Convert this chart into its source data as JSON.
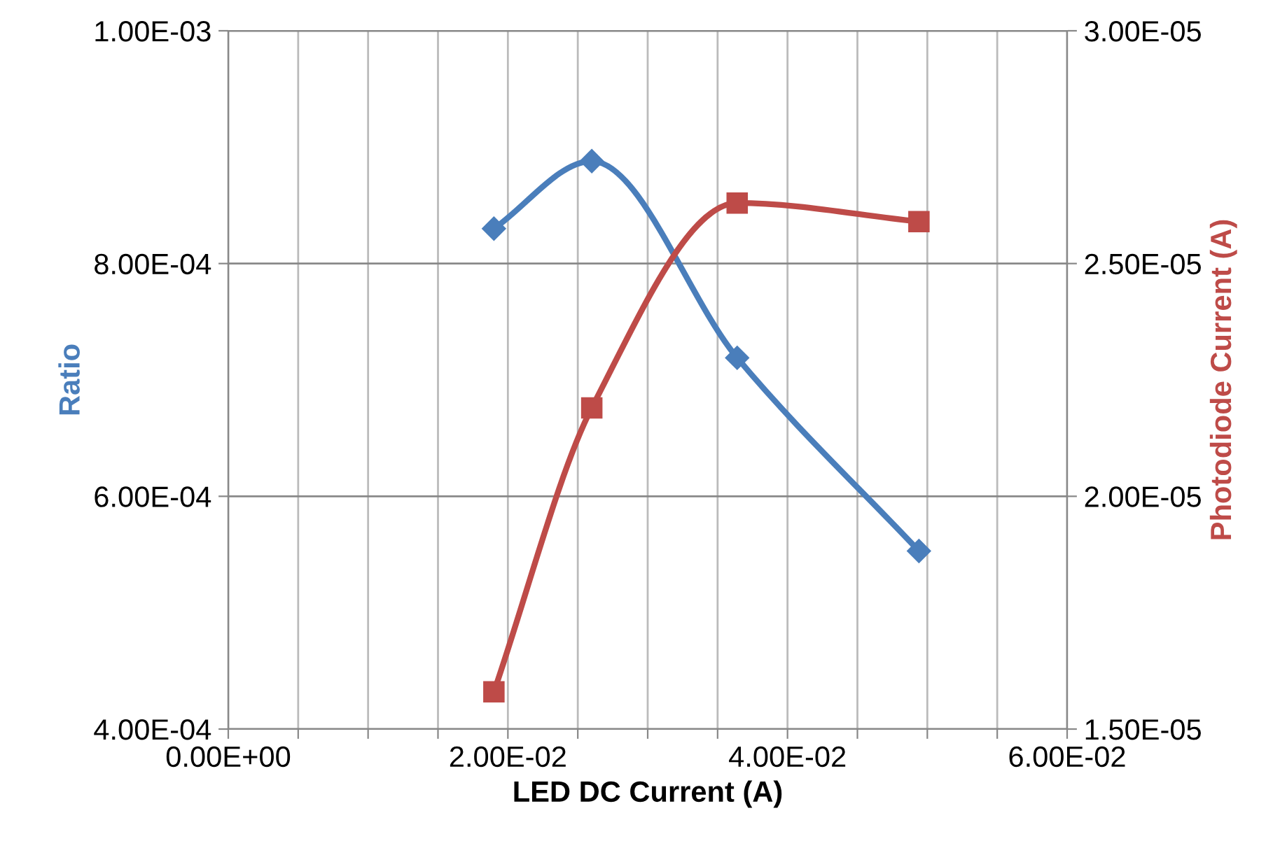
{
  "chart_data": {
    "type": "line",
    "xlabel": "LED DC Current (A)",
    "ylabel": "Ratio",
    "y2label": "Photodiode Current (A)",
    "series": [
      {
        "color": "#4a7ebb",
        "marker": "diamond",
        "x": [
          0.019,
          0.026,
          0.0364,
          0.0494
        ],
        "values": [
          0.00083,
          0.000888,
          0.000719,
          0.000553
        ]
      },
      {
        "color": "#be4b48",
        "marker": "square",
        "axis": "y2",
        "x": [
          0.019,
          0.026,
          0.0364,
          0.0494
        ],
        "values": [
          1.58e-05,
          2.19e-05,
          2.63e-05,
          2.59e-05
        ]
      }
    ],
    "xlim": [
      0,
      0.06
    ],
    "xticks": [
      {
        "value": 0,
        "label": "0.00E+00"
      },
      {
        "value": 0.005,
        "label": null
      },
      {
        "value": 0.01,
        "label": null
      },
      {
        "value": 0.015,
        "label": null
      },
      {
        "value": 0.02,
        "label": "2.00E-02"
      },
      {
        "value": 0.025,
        "label": null
      },
      {
        "value": 0.03,
        "label": null
      },
      {
        "value": 0.035,
        "label": null
      },
      {
        "value": 0.04,
        "label": "4.00E-02"
      },
      {
        "value": 0.045,
        "label": null
      },
      {
        "value": 0.05,
        "label": null
      },
      {
        "value": 0.055,
        "label": null
      },
      {
        "value": 0.06,
        "label": "6.00E-02"
      }
    ],
    "ylim": [
      0.0004,
      0.001
    ],
    "yticks": [
      {
        "value": 0.0004,
        "label": "4.00E-04"
      },
      {
        "value": 0.0006,
        "label": "6.00E-04"
      },
      {
        "value": 0.0008,
        "label": "8.00E-04"
      },
      {
        "value": 0.001,
        "label": "1.00E-03"
      }
    ],
    "y2lim": [
      1.5e-05,
      3e-05
    ],
    "y2ticks": [
      {
        "value": 1.5e-05,
        "label": "1.50E-05"
      },
      {
        "value": 2e-05,
        "label": "2.00E-05"
      },
      {
        "value": 2.5e-05,
        "label": "2.50E-05"
      },
      {
        "value": 3e-05,
        "label": "3.00E-05"
      }
    ],
    "grid": true
  }
}
